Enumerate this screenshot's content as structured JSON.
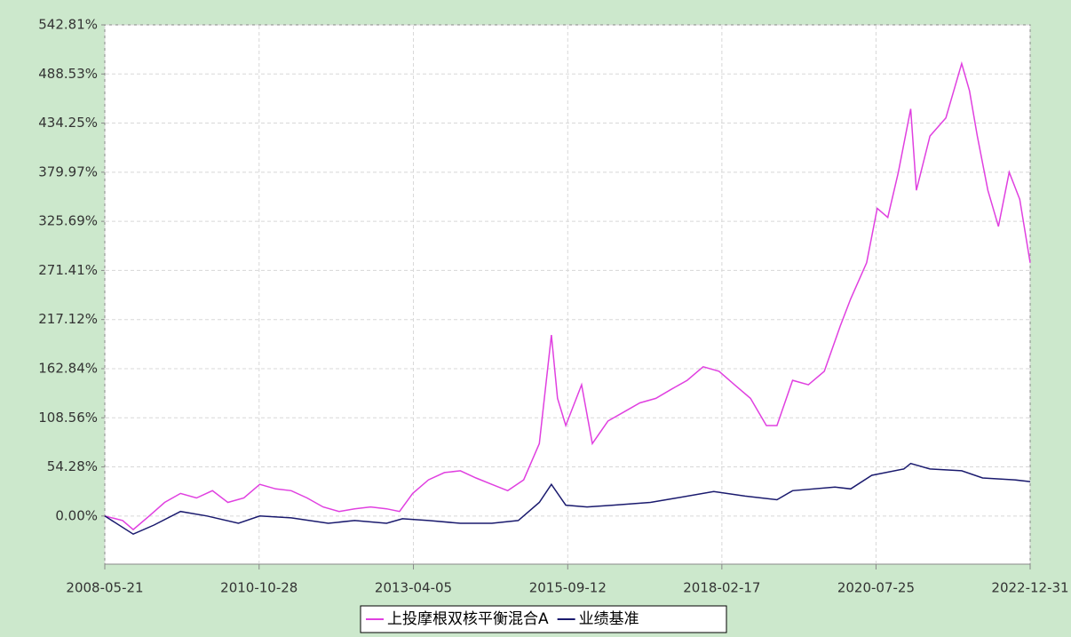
{
  "chart_data": {
    "type": "line",
    "xlim": [
      "2008-05-21",
      "2022-12-31"
    ],
    "xticks": [
      "2008-05-21",
      "2010-10-28",
      "2013-04-05",
      "2015-09-12",
      "2018-02-17",
      "2020-07-25",
      "2022-12-31"
    ],
    "ylim": [
      -53.2,
      542.81
    ],
    "yticks": [
      {
        "value": 0,
        "label": "0.00%"
      },
      {
        "value": 54.28,
        "label": "54.28%"
      },
      {
        "value": 108.56,
        "label": "108.56%"
      },
      {
        "value": 162.84,
        "label": "162.84%"
      },
      {
        "value": 217.12,
        "label": "217.12%"
      },
      {
        "value": 271.41,
        "label": "271.41%"
      },
      {
        "value": 325.69,
        "label": "325.69%"
      },
      {
        "value": 379.97,
        "label": "379.97%"
      },
      {
        "value": 434.25,
        "label": "434.25%"
      },
      {
        "value": 488.53,
        "label": "488.53%"
      },
      {
        "value": 542.81,
        "label": "542.81%"
      }
    ],
    "grid": true,
    "series": [
      {
        "name": "上投摩根双核平衡混合A",
        "color": "#e040e0",
        "x": [
          "2008-05-21",
          "2008-09-01",
          "2008-11-01",
          "2009-02-01",
          "2009-05-01",
          "2009-08-01",
          "2009-11-01",
          "2010-02-01",
          "2010-05-01",
          "2010-08-01",
          "2010-11-01",
          "2011-02-01",
          "2011-05-01",
          "2011-08-01",
          "2011-11-01",
          "2012-02-01",
          "2012-05-01",
          "2012-08-01",
          "2012-11-01",
          "2013-01-15",
          "2013-04-01",
          "2013-07-01",
          "2013-10-01",
          "2014-01-01",
          "2014-04-01",
          "2014-07-01",
          "2014-10-01",
          "2015-01-01",
          "2015-04-01",
          "2015-06-10",
          "2015-07-15",
          "2015-09-01",
          "2015-12-01",
          "2016-02-01",
          "2016-05-01",
          "2016-08-01",
          "2016-11-01",
          "2017-02-01",
          "2017-05-01",
          "2017-08-01",
          "2017-11-01",
          "2018-02-01",
          "2018-05-01",
          "2018-08-01",
          "2018-11-01",
          "2019-01-01",
          "2019-04-01",
          "2019-07-01",
          "2019-10-01",
          "2020-01-01",
          "2020-03-01",
          "2020-06-01",
          "2020-08-01",
          "2020-10-01",
          "2020-12-01",
          "2021-02-10",
          "2021-03-15",
          "2021-06-01",
          "2021-09-01",
          "2021-12-01",
          "2022-01-15",
          "2022-03-01",
          "2022-05-01",
          "2022-07-01",
          "2022-09-01",
          "2022-11-01",
          "2022-12-31"
        ],
        "values": [
          0,
          -5,
          -15,
          0,
          15,
          25,
          20,
          28,
          15,
          20,
          35,
          30,
          28,
          20,
          10,
          5,
          8,
          10,
          8,
          5,
          25,
          40,
          48,
          50,
          42,
          35,
          28,
          40,
          80,
          200,
          130,
          100,
          145,
          80,
          105,
          115,
          125,
          130,
          140,
          150,
          165,
          160,
          145,
          130,
          100,
          100,
          150,
          145,
          160,
          210,
          240,
          280,
          340,
          330,
          380,
          450,
          360,
          420,
          440,
          500,
          470,
          420,
          360,
          320,
          380,
          350,
          280
        ]
      },
      {
        "name": "业绩基准",
        "color": "#1a1a6e",
        "x": [
          "2008-05-21",
          "2008-11-01",
          "2009-03-01",
          "2009-08-01",
          "2010-01-01",
          "2010-07-01",
          "2010-11-01",
          "2011-05-01",
          "2011-12-01",
          "2012-05-01",
          "2012-11-01",
          "2013-02-01",
          "2013-07-01",
          "2014-01-01",
          "2014-07-01",
          "2014-12-01",
          "2015-04-01",
          "2015-06-10",
          "2015-09-01",
          "2016-01-01",
          "2016-06-01",
          "2017-01-01",
          "2017-06-01",
          "2018-01-01",
          "2018-07-01",
          "2019-01-01",
          "2019-04-01",
          "2019-12-01",
          "2020-03-01",
          "2020-07-01",
          "2021-01-01",
          "2021-02-10",
          "2021-06-01",
          "2021-12-01",
          "2022-04-01",
          "2022-10-01",
          "2022-12-31"
        ],
        "values": [
          0,
          -20,
          -10,
          5,
          0,
          -8,
          0,
          -2,
          -8,
          -5,
          -8,
          -3,
          -5,
          -8,
          -8,
          -5,
          15,
          35,
          12,
          10,
          12,
          15,
          20,
          27,
          22,
          18,
          28,
          32,
          30,
          45,
          52,
          58,
          52,
          50,
          42,
          40,
          38
        ]
      }
    ]
  }
}
